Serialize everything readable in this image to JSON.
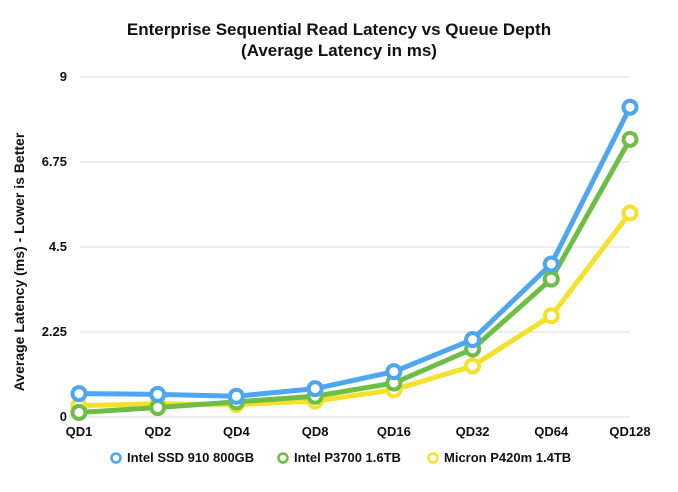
{
  "chart_data": {
    "type": "line",
    "title_line1": "Enterprise Sequential Read Latency vs Queue Depth",
    "title_line2": "(Average Latency in ms)",
    "xlabel": "",
    "ylabel": "Average Latency (ms) - Lower is Better",
    "categories": [
      "QD1",
      "QD2",
      "QD4",
      "QD8",
      "QD16",
      "QD32",
      "QD64",
      "QD128"
    ],
    "ylim": [
      0,
      9
    ],
    "yticks": [
      "0",
      "2.25",
      "4.5",
      "6.75",
      "9"
    ],
    "grid": true,
    "legend_position": "bottom",
    "series": [
      {
        "name": "Intel SSD 910 800GB",
        "color": "#4da6f0",
        "values": [
          0.62,
          0.6,
          0.55,
          0.75,
          1.2,
          2.05,
          4.05,
          8.2
        ]
      },
      {
        "name": "Intel P3700 1.6TB",
        "color": "#6cbe45",
        "values": [
          0.12,
          0.25,
          0.4,
          0.55,
          0.9,
          1.8,
          3.65,
          7.35
        ]
      },
      {
        "name": "Micron P420m 1.4TB",
        "color": "#f5e12b",
        "values": [
          0.3,
          0.35,
          0.33,
          0.42,
          0.72,
          1.35,
          2.68,
          5.4
        ]
      }
    ]
  }
}
